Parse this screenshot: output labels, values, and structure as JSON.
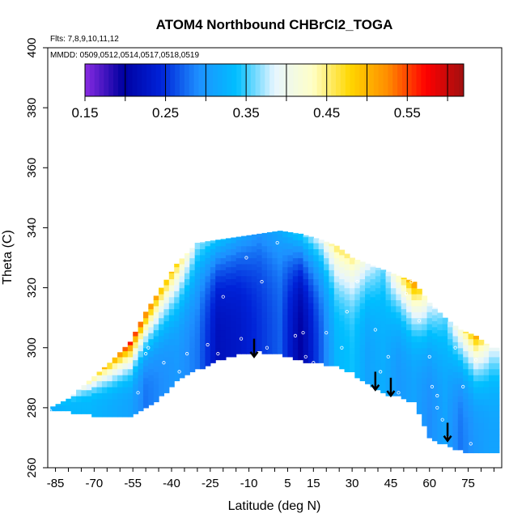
{
  "chart_data": {
    "type": "heatmap",
    "title": "ATOM4 Northbound CHBrCl2_TOGA",
    "subtitle_flights": "Flts: 7,8,9,10,11,12",
    "subtitle_dates": "MMDD: 0509,0512,0514,0517,0518,0519",
    "xlabel": "Latitude (deg N)",
    "ylabel": "Theta (C)",
    "xlim": [
      -88,
      88
    ],
    "ylim": [
      260,
      400
    ],
    "x_ticks": [
      -85,
      -70,
      -55,
      -40,
      -25,
      -10,
      5,
      15,
      30,
      45,
      60,
      75
    ],
    "y_ticks": [
      260,
      280,
      300,
      320,
      340,
      360,
      380,
      400
    ],
    "colorbar": {
      "range": [
        0.15,
        0.62
      ],
      "tick_values": [
        0.15,
        0.25,
        0.35,
        0.45,
        0.55
      ],
      "tick_labels": [
        "0.15",
        "0.25",
        "0.35",
        "0.45",
        "0.55"
      ],
      "colors": [
        "#8a2be2",
        "#0000a0",
        "#0022d8",
        "#1e90ff",
        "#00bfff",
        "#e6f5ff",
        "#ffffc8",
        "#ffd700",
        "#ff8c00",
        "#ff0000",
        "#a01010"
      ]
    },
    "field": {
      "columns": [
        {
          "lat": -87,
          "bottom": 279,
          "top": 280,
          "ridge": 0.33,
          "base": 0.32
        },
        {
          "lat": -80,
          "bottom": 279,
          "top": 283,
          "ridge": 0.38,
          "base": 0.33
        },
        {
          "lat": -72,
          "bottom": 278,
          "top": 289,
          "ridge": 0.47,
          "base": 0.33
        },
        {
          "lat": -64,
          "bottom": 277,
          "top": 295,
          "ridge": 0.53,
          "base": 0.32
        },
        {
          "lat": -56,
          "bottom": 277,
          "top": 302,
          "ridge": 0.6,
          "base": 0.31
        },
        {
          "lat": -50,
          "bottom": 280,
          "top": 312,
          "ridge": 0.57,
          "base": 0.28
        },
        {
          "lat": -44,
          "bottom": 284,
          "top": 320,
          "ridge": 0.52,
          "base": 0.29
        },
        {
          "lat": -38,
          "bottom": 289,
          "top": 328,
          "ridge": 0.49,
          "base": 0.3
        },
        {
          "lat": -30,
          "bottom": 293,
          "top": 335,
          "ridge": 0.38,
          "base": 0.28
        },
        {
          "lat": -22,
          "bottom": 296,
          "top": 336,
          "ridge": 0.35,
          "base": 0.22
        },
        {
          "lat": -14,
          "bottom": 298,
          "top": 337,
          "ridge": 0.32,
          "base": 0.23
        },
        {
          "lat": -6,
          "bottom": 299,
          "top": 338,
          "ridge": 0.3,
          "base": 0.25
        },
        {
          "lat": 2,
          "bottom": 298,
          "top": 339,
          "ridge": 0.32,
          "base": 0.27
        },
        {
          "lat": 10,
          "bottom": 296,
          "top": 338,
          "ridge": 0.36,
          "base": 0.2
        },
        {
          "lat": 18,
          "bottom": 295,
          "top": 336,
          "ridge": 0.4,
          "base": 0.27
        },
        {
          "lat": 24,
          "bottom": 294,
          "top": 334,
          "ridge": 0.47,
          "base": 0.33
        },
        {
          "lat": 30,
          "bottom": 292,
          "top": 330,
          "ridge": 0.46,
          "base": 0.34
        },
        {
          "lat": 36,
          "bottom": 288,
          "top": 328,
          "ridge": 0.4,
          "base": 0.31
        },
        {
          "lat": 42,
          "bottom": 285,
          "top": 326,
          "ridge": 0.36,
          "base": 0.32
        },
        {
          "lat": 48,
          "bottom": 284,
          "top": 324,
          "ridge": 0.45,
          "base": 0.3
        },
        {
          "lat": 54,
          "bottom": 282,
          "top": 322,
          "ridge": 0.54,
          "base": 0.31
        },
        {
          "lat": 60,
          "bottom": 270,
          "top": 315,
          "ridge": 0.4,
          "base": 0.29
        },
        {
          "lat": 66,
          "bottom": 268,
          "top": 310,
          "ridge": 0.36,
          "base": 0.31
        },
        {
          "lat": 72,
          "bottom": 266,
          "top": 306,
          "ridge": 0.44,
          "base": 0.28
        },
        {
          "lat": 78,
          "bottom": 265,
          "top": 304,
          "ridge": 0.52,
          "base": 0.3
        },
        {
          "lat": 84,
          "bottom": 265,
          "top": 300,
          "ridge": 0.4,
          "base": 0.31
        }
      ]
    },
    "sample_points": [
      [
        -87,
        279
      ],
      [
        -53,
        285
      ],
      [
        -50,
        298
      ],
      [
        -49,
        300
      ],
      [
        -43,
        295
      ],
      [
        -37,
        292
      ],
      [
        -34,
        298
      ],
      [
        -26,
        301
      ],
      [
        -22,
        298
      ],
      [
        -20,
        317
      ],
      [
        -13,
        303
      ],
      [
        -11,
        330
      ],
      [
        -5,
        322
      ],
      [
        -3,
        300
      ],
      [
        1,
        335
      ],
      [
        3,
        340
      ],
      [
        8,
        304
      ],
      [
        11,
        305
      ],
      [
        12,
        297
      ],
      [
        15,
        295
      ],
      [
        20,
        305
      ],
      [
        26,
        300
      ],
      [
        28,
        312
      ],
      [
        32,
        322
      ],
      [
        39,
        306
      ],
      [
        41,
        292
      ],
      [
        44,
        297
      ],
      [
        48,
        285
      ],
      [
        51,
        318
      ],
      [
        53,
        322
      ],
      [
        56,
        309
      ],
      [
        60,
        297
      ],
      [
        61,
        287
      ],
      [
        63,
        284
      ],
      [
        63,
        280
      ],
      [
        65,
        276
      ],
      [
        67,
        270
      ],
      [
        70,
        300
      ],
      [
        73,
        287
      ],
      [
        76,
        268
      ],
      [
        78,
        296
      ],
      [
        80,
        305
      ]
    ],
    "arrows": [
      {
        "lat": -8,
        "theta_start": 303,
        "theta_end": 297
      },
      {
        "lat": 39,
        "theta_start": 292,
        "theta_end": 286
      },
      {
        "lat": 45,
        "theta_start": 290,
        "theta_end": 284
      },
      {
        "lat": 67,
        "theta_start": 275,
        "theta_end": 269
      }
    ]
  }
}
